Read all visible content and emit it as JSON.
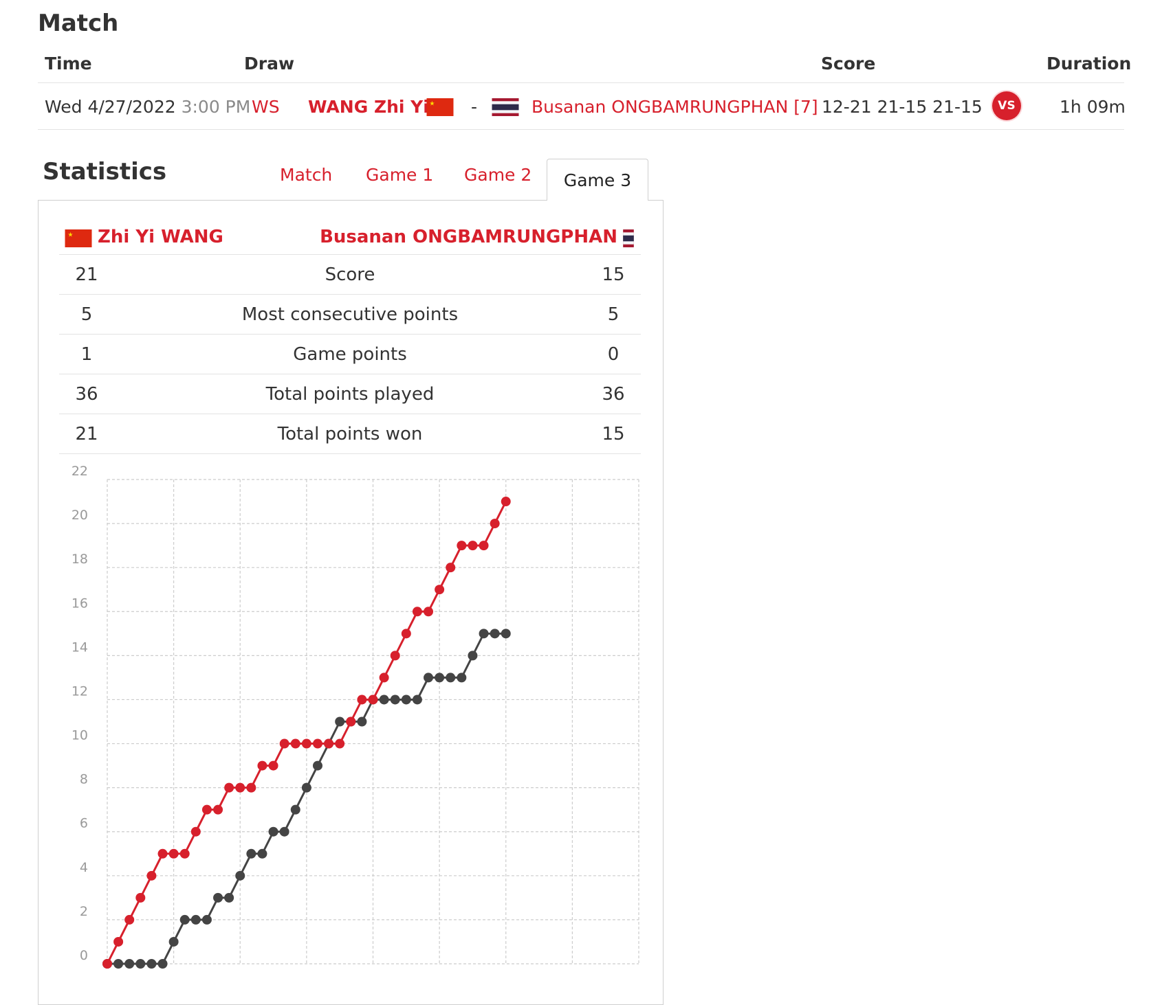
{
  "match": {
    "title": "Match",
    "headers": {
      "time": "Time",
      "draw": "Draw",
      "score": "Score",
      "duration": "Duration"
    },
    "row": {
      "date": "Wed 4/27/2022",
      "time": "3:00 PM",
      "event": "WS",
      "player1": "WANG Zhi Yi",
      "separator": "-",
      "player2": "Busanan ONGBAMRUNGPHAN [7]",
      "score": "12-21 21-15 21-15",
      "vs_badge": "VS",
      "duration": "1h 09m"
    }
  },
  "statistics": {
    "title": "Statistics",
    "tabs": [
      {
        "label": "Match",
        "active": false
      },
      {
        "label": "Game 1",
        "active": false
      },
      {
        "label": "Game 2",
        "active": false
      },
      {
        "label": "Game 3",
        "active": true
      }
    ],
    "player_left": "Zhi Yi WANG",
    "player_right": "Busanan ONGBAMRUNGPHAN",
    "rows": [
      {
        "left": "21",
        "label": "Score",
        "right": "15"
      },
      {
        "left": "5",
        "label": "Most consecutive points",
        "right": "5"
      },
      {
        "left": "1",
        "label": "Game points",
        "right": "0"
      },
      {
        "left": "36",
        "label": "Total points played",
        "right": "36"
      },
      {
        "left": "21",
        "label": "Total points won",
        "right": "15"
      }
    ]
  },
  "colors": {
    "accent": "#d7202c",
    "series_dark": "#444444",
    "grid": "#cccccc"
  },
  "icons": {
    "flag_left": "china-flag-icon",
    "flag_right": "thailand-flag-icon",
    "vs": "vs-badge-icon"
  },
  "chart_data": {
    "type": "line",
    "grid": true,
    "ylim": [
      0,
      22
    ],
    "yticks": [
      0,
      2,
      4,
      6,
      8,
      10,
      12,
      14,
      16,
      18,
      20,
      22
    ],
    "x": [
      0,
      1,
      2,
      3,
      4,
      5,
      6,
      7,
      8,
      9,
      10,
      11,
      12,
      13,
      14,
      15,
      16,
      17,
      18,
      19,
      20,
      21,
      22,
      23,
      24,
      25,
      26,
      27,
      28,
      29,
      30,
      31,
      32,
      33,
      34,
      35,
      36
    ],
    "series": [
      {
        "color": "#d7202c",
        "values": [
          0,
          1,
          2,
          3,
          4,
          5,
          5,
          5,
          6,
          7,
          7,
          8,
          8,
          8,
          9,
          9,
          10,
          10,
          10,
          10,
          10,
          10,
          11,
          12,
          12,
          13,
          14,
          15,
          16,
          16,
          17,
          18,
          19,
          19,
          19,
          20,
          21
        ]
      },
      {
        "color": "#444444",
        "values": [
          0,
          0,
          0,
          0,
          0,
          0,
          1,
          2,
          2,
          2,
          3,
          3,
          4,
          5,
          5,
          6,
          6,
          7,
          8,
          9,
          10,
          11,
          11,
          11,
          12,
          12,
          12,
          12,
          12,
          13,
          13,
          13,
          13,
          14,
          15,
          15,
          15
        ]
      }
    ]
  }
}
